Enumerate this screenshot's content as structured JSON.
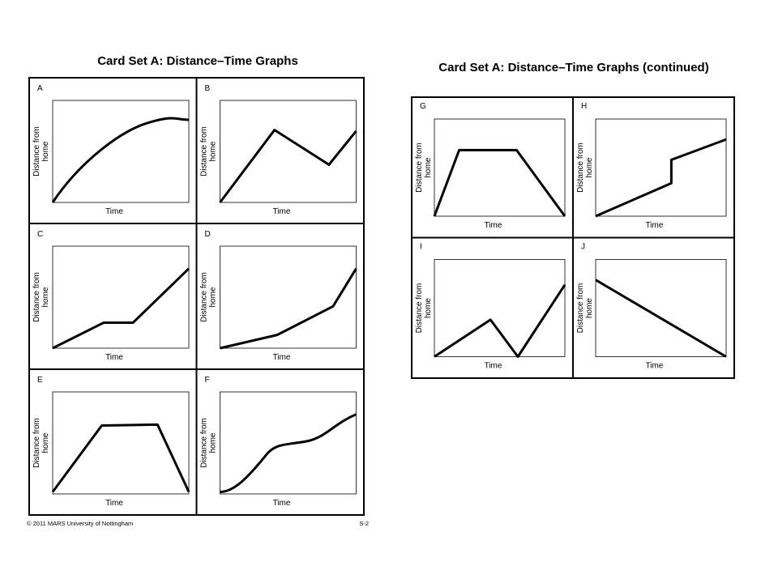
{
  "pages": [
    {
      "title": "Card Set A: Distance–Time Graphs",
      "cards": [
        {
          "label": "A",
          "x_axis": "Time",
          "y_axis": [
            "Distance from",
            "home"
          ]
        },
        {
          "label": "B",
          "x_axis": "Time",
          "y_axis": [
            "Distance from",
            "home"
          ]
        },
        {
          "label": "C",
          "x_axis": "Time",
          "y_axis": [
            "Distance from",
            "home"
          ]
        },
        {
          "label": "D",
          "x_axis": "Time",
          "y_axis": [
            "Distance from",
            "home"
          ]
        },
        {
          "label": "E",
          "x_axis": "Time",
          "y_axis": [
            "Distance from",
            "home"
          ]
        },
        {
          "label": "F",
          "x_axis": "Time",
          "y_axis": [
            "Distance from",
            "home"
          ]
        }
      ]
    },
    {
      "title": "Card Set A: Distance–Time Graphs (continued)",
      "cards": [
        {
          "label": "G",
          "x_axis": "Time",
          "y_axis": [
            "Distance from",
            "home"
          ]
        },
        {
          "label": "H",
          "x_axis": "Time",
          "y_axis": [
            "Distance from",
            "home"
          ]
        },
        {
          "label": "I",
          "x_axis": "Time",
          "y_axis": [
            "Distance from",
            "home"
          ]
        },
        {
          "label": "J",
          "x_axis": "Time",
          "y_axis": [
            "Distance from",
            "home"
          ]
        }
      ]
    }
  ],
  "footer": {
    "copyright": "© 2011 MARS University of Nottingham",
    "page": "S-2"
  }
}
